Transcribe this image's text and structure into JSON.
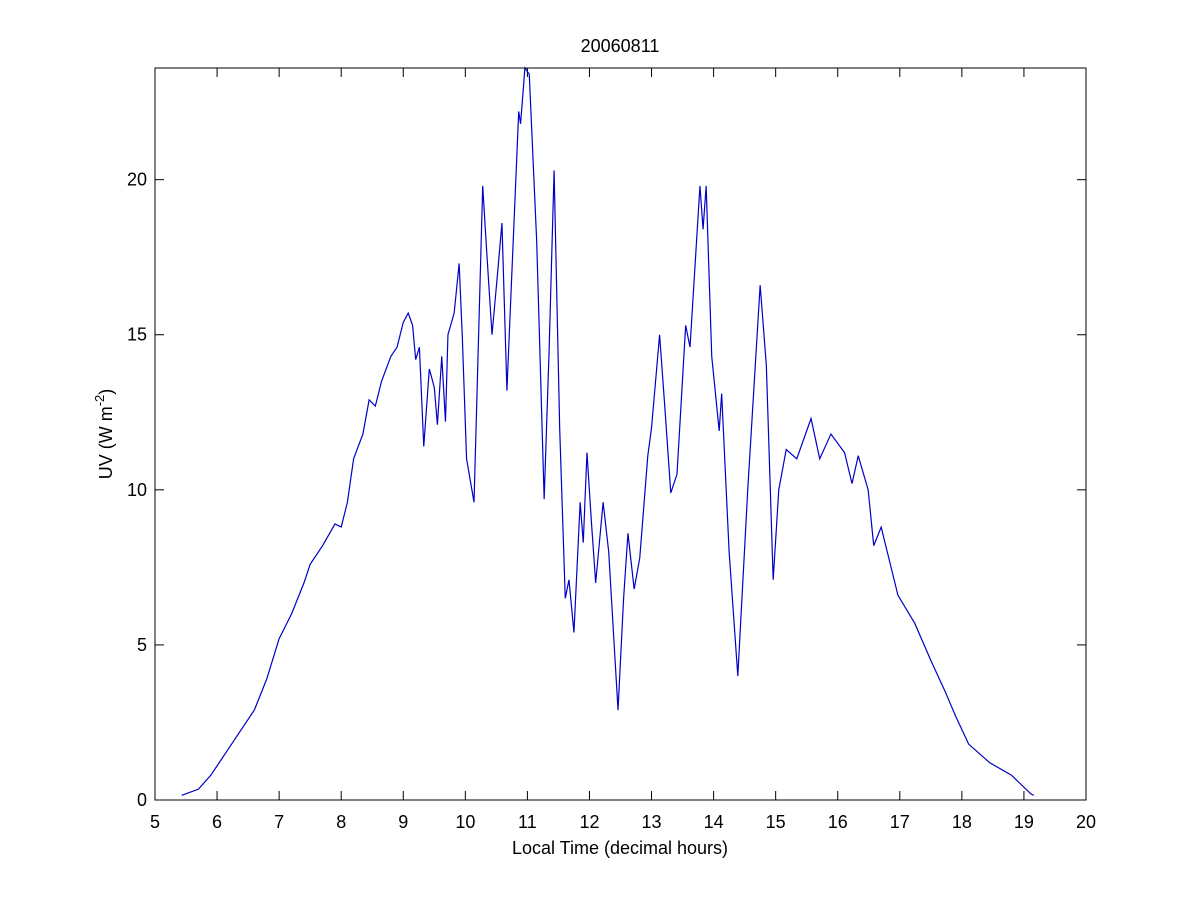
{
  "chart_data": {
    "type": "line",
    "title": "20060811",
    "xlabel": "Local Time (decimal hours)",
    "ylabel": [
      "UV (W m",
      "-2",
      ")"
    ],
    "xlim": [
      5,
      20
    ],
    "xticks": [
      5,
      6,
      7,
      8,
      9,
      10,
      11,
      12,
      13,
      14,
      15,
      16,
      17,
      18,
      19,
      20
    ],
    "ylim": [
      0,
      23.6
    ],
    "yticks": [
      0,
      5,
      10,
      15,
      20
    ],
    "series": [
      {
        "color": "#0000c8",
        "x": [
          5.43,
          5.7,
          5.9,
          6.0,
          6.3,
          6.6,
          6.8,
          7.0,
          7.2,
          7.4,
          7.5,
          7.7,
          7.9,
          8.0,
          8.1,
          8.2,
          8.35,
          8.45,
          8.55,
          8.65,
          8.8,
          8.9,
          9.0,
          9.08,
          9.15,
          9.2,
          9.26,
          9.33,
          9.42,
          9.5,
          9.55,
          9.62,
          9.68,
          9.72,
          9.82,
          9.9,
          9.95,
          10.02,
          10.14,
          10.28,
          10.35,
          10.43,
          10.52,
          10.59,
          10.67,
          10.75,
          10.86,
          10.89,
          10.96,
          11.03,
          11.15,
          11.27,
          11.35,
          11.43,
          11.52,
          11.61,
          11.67,
          11.75,
          11.85,
          11.9,
          11.96,
          12.03,
          12.1,
          12.22,
          12.31,
          12.46,
          12.55,
          12.62,
          12.72,
          12.81,
          12.94,
          13.0,
          13.13,
          13.22,
          13.31,
          13.41,
          13.55,
          13.62,
          13.78,
          13.83,
          13.88,
          13.97,
          14.09,
          14.13,
          14.25,
          14.39,
          14.55,
          14.75,
          14.85,
          14.96,
          15.05,
          15.17,
          15.34,
          15.57,
          15.71,
          15.89,
          16.11,
          16.23,
          16.33,
          16.49,
          16.58,
          16.7,
          16.97,
          17.24,
          17.5,
          17.73,
          17.9,
          18.11,
          18.45,
          18.8,
          19.11,
          19.16
        ],
        "values": [
          0.15,
          0.35,
          0.8,
          1.1,
          2.0,
          2.9,
          3.9,
          5.2,
          6.0,
          7.0,
          7.6,
          8.2,
          8.9,
          8.8,
          9.6,
          11.0,
          11.8,
          12.9,
          12.7,
          13.5,
          14.3,
          14.6,
          15.4,
          15.7,
          15.3,
          14.2,
          14.6,
          11.4,
          13.9,
          13.3,
          12.1,
          14.3,
          12.2,
          15.0,
          15.7,
          17.3,
          15.0,
          11.0,
          9.6,
          19.8,
          17.5,
          15.0,
          17.0,
          18.6,
          13.2,
          17.0,
          22.2,
          21.8,
          23.6,
          23.4,
          18.0,
          9.7,
          14.5,
          20.3,
          12.0,
          6.5,
          7.1,
          5.4,
          9.6,
          8.3,
          11.2,
          9.0,
          7.0,
          9.6,
          8.0,
          2.9,
          6.5,
          8.6,
          6.8,
          7.8,
          11.1,
          12.0,
          15.0,
          12.5,
          9.9,
          10.5,
          15.3,
          14.6,
          19.8,
          18.4,
          19.8,
          14.3,
          11.9,
          13.1,
          8.0,
          4.0,
          10.0,
          16.6,
          14.0,
          7.1,
          10.0,
          11.3,
          11.0,
          12.3,
          11.0,
          11.8,
          11.2,
          10.2,
          11.1,
          10.0,
          8.2,
          8.8,
          6.6,
          5.7,
          4.5,
          3.5,
          2.7,
          1.8,
          1.2,
          0.8,
          0.2,
          0.15
        ]
      }
    ]
  }
}
